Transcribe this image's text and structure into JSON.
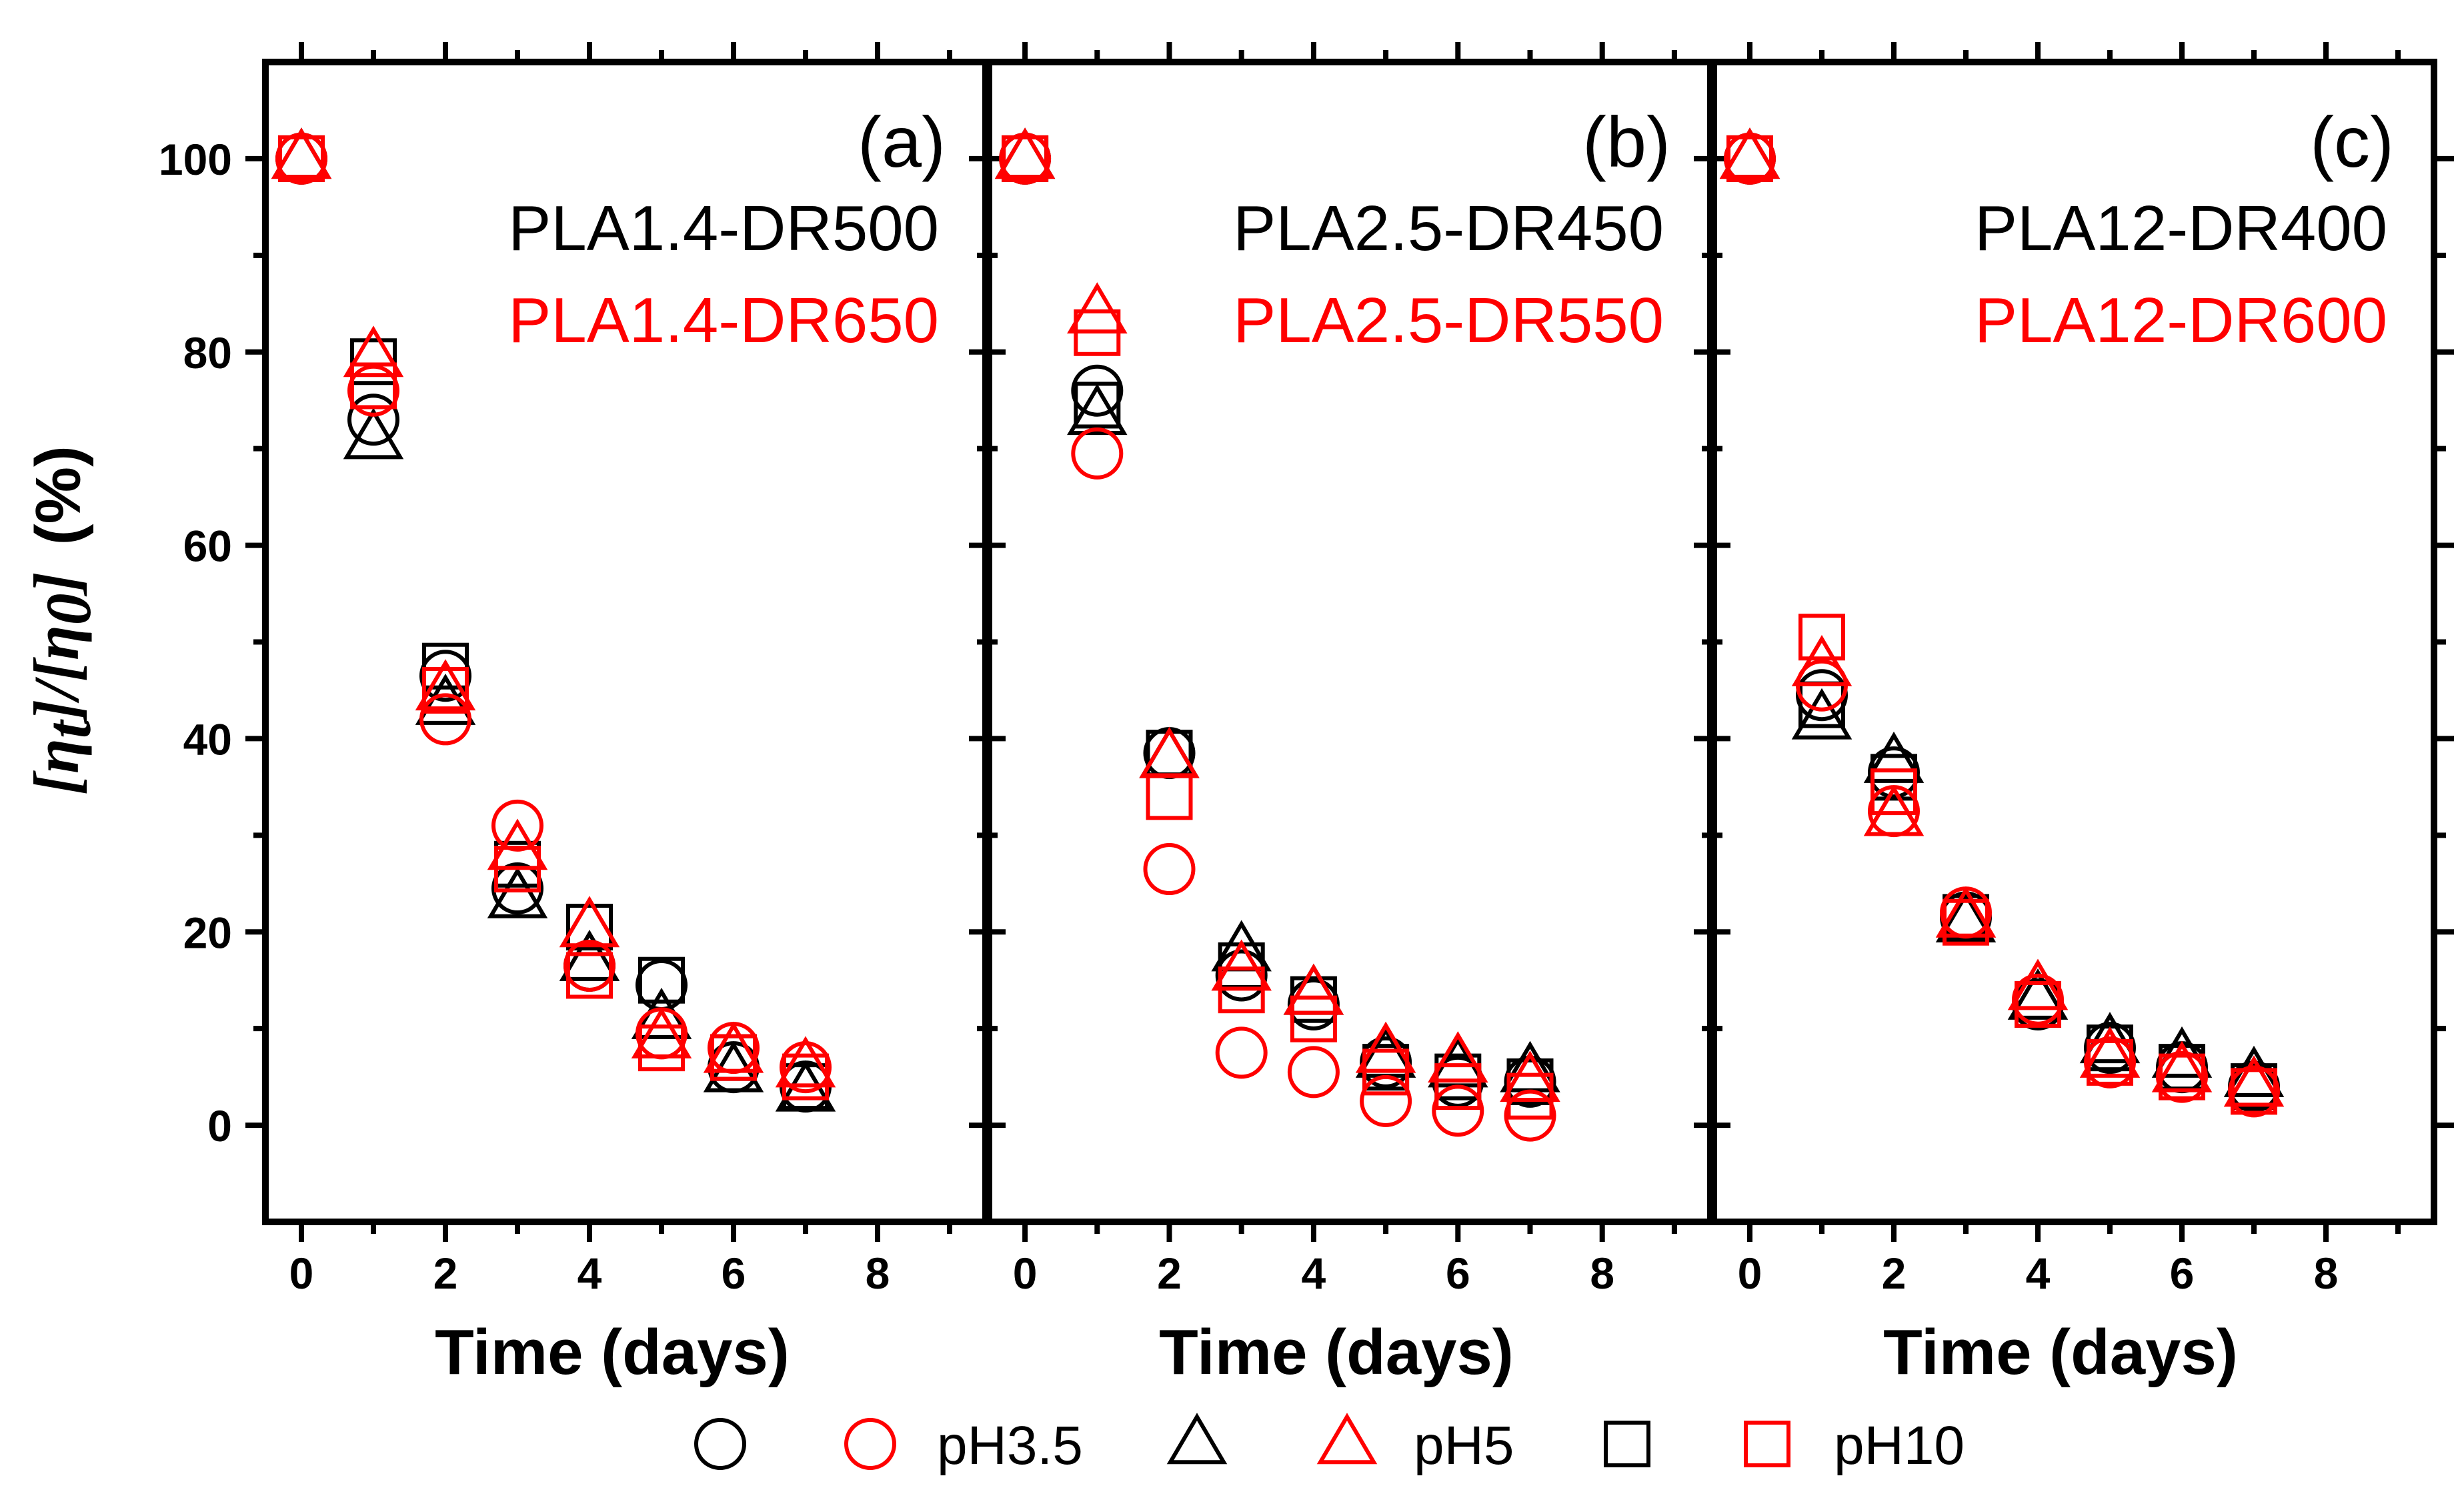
{
  "chart_data": [
    {
      "type": "scatter",
      "panel": "(a)",
      "xlabel": "Time (days)",
      "ylabel": "[ηt]/[η0] (%)",
      "xlim": [
        -0.5,
        9.5
      ],
      "ylim": [
        -10,
        110
      ],
      "xticks": [
        0,
        2,
        4,
        6,
        8
      ],
      "yticks": [
        0,
        20,
        40,
        60,
        80,
        100
      ],
      "samples": [
        {
          "name": "PLA1.4-DR500",
          "color": "#000000"
        },
        {
          "name": "PLA1.4-DR650",
          "color": "#ff0000"
        }
      ],
      "series": [
        {
          "sample": "PLA1.4-DR500",
          "ph": "pH3.5",
          "marker": "circle",
          "color": "#000000",
          "x": [
            0,
            1,
            2,
            3,
            4,
            5,
            6,
            7
          ],
          "y": [
            100,
            73,
            46.5,
            24.5,
            16.5,
            14.5,
            6,
            4
          ]
        },
        {
          "sample": "PLA1.4-DR500",
          "ph": "pH5",
          "marker": "triangle",
          "color": "#000000",
          "x": [
            0,
            1,
            2,
            3,
            4,
            5,
            6,
            7
          ],
          "y": [
            100,
            71,
            43.5,
            23.5,
            17,
            11,
            5.5,
            3.5
          ]
        },
        {
          "sample": "PLA1.4-DR500",
          "ph": "pH10",
          "marker": "square",
          "color": "#000000",
          "x": [
            0,
            1,
            2,
            3,
            4,
            5,
            6,
            7
          ],
          "y": [
            100,
            79,
            47.5,
            27,
            20.5,
            15,
            7,
            4
          ]
        },
        {
          "sample": "PLA1.4-DR650",
          "ph": "pH3.5",
          "marker": "circle",
          "color": "#ff0000",
          "x": [
            0,
            1,
            2,
            3,
            4,
            5,
            6,
            7
          ],
          "y": [
            100,
            76,
            42,
            31,
            16.5,
            9.5,
            8,
            6
          ]
        },
        {
          "sample": "PLA1.4-DR650",
          "ph": "pH5",
          "marker": "triangle",
          "color": "#ff0000",
          "x": [
            0,
            1,
            2,
            3,
            4,
            5,
            6,
            7
          ],
          "y": [
            100,
            79.5,
            45,
            28.5,
            20.5,
            9,
            7.5,
            6
          ]
        },
        {
          "sample": "PLA1.4-DR650",
          "ph": "pH10",
          "marker": "square",
          "color": "#ff0000",
          "x": [
            0,
            1,
            2,
            3,
            4,
            5,
            6,
            7
          ],
          "y": [
            100,
            76.5,
            45,
            26.5,
            15.5,
            8,
            7,
            5
          ]
        }
      ]
    },
    {
      "type": "scatter",
      "panel": "(b)",
      "xlabel": "Time (days)",
      "xlim": [
        -0.5,
        9.5
      ],
      "ylim": [
        -10,
        110
      ],
      "xticks": [
        0,
        2,
        4,
        6,
        8
      ],
      "yticks": [
        0,
        20,
        40,
        60,
        80,
        100
      ],
      "samples": [
        {
          "name": "PLA2.5-DR450",
          "color": "#000000"
        },
        {
          "name": "PLA2.5-DR550",
          "color": "#ff0000"
        }
      ],
      "series": [
        {
          "sample": "PLA2.5-DR450",
          "ph": "pH3.5",
          "marker": "circle",
          "color": "#000000",
          "x": [
            0,
            1,
            2,
            3,
            4,
            5,
            6,
            7
          ],
          "y": [
            100,
            76,
            38.5,
            15.5,
            12.5,
            6.5,
            4.5,
            4.5
          ]
        },
        {
          "sample": "PLA2.5-DR450",
          "ph": "pH5",
          "marker": "triangle",
          "color": "#000000",
          "x": [
            0,
            1,
            2,
            3,
            4,
            5,
            6,
            7
          ],
          "y": [
            100,
            73.5,
            38,
            18,
            13.5,
            7,
            6,
            5.5
          ]
        },
        {
          "sample": "PLA2.5-DR450",
          "ph": "pH10",
          "marker": "square",
          "color": "#000000",
          "x": [
            0,
            1,
            2,
            3,
            4,
            5,
            6,
            7
          ],
          "y": [
            100,
            74.5,
            38.5,
            16.5,
            13,
            6,
            5,
            4.5
          ]
        },
        {
          "sample": "PLA2.5-DR550",
          "ph": "pH3.5",
          "marker": "circle",
          "color": "#ff0000",
          "x": [
            0,
            1,
            2,
            3,
            4,
            5,
            6,
            7
          ],
          "y": [
            100,
            69.5,
            26.5,
            7.5,
            5.5,
            2.5,
            1.5,
            1
          ]
        },
        {
          "sample": "PLA2.5-DR550",
          "ph": "pH5",
          "marker": "triangle",
          "color": "#ff0000",
          "x": [
            0,
            1,
            2,
            3,
            4,
            5,
            6,
            7
          ],
          "y": [
            100,
            84,
            38,
            16,
            13.5,
            7.5,
            6.5,
            4.5
          ]
        },
        {
          "sample": "PLA2.5-DR550",
          "ph": "pH10",
          "marker": "square",
          "color": "#ff0000",
          "x": [
            0,
            1,
            2,
            3,
            4,
            5,
            6,
            7
          ],
          "y": [
            100,
            82,
            34,
            14,
            11,
            5.5,
            4,
            3
          ]
        }
      ]
    },
    {
      "type": "scatter",
      "panel": "(c)",
      "xlabel": "Time (days)",
      "xlim": [
        -0.5,
        9.5
      ],
      "ylim": [
        -10,
        110
      ],
      "xticks": [
        0,
        2,
        4,
        6,
        8
      ],
      "yticks": [
        0,
        20,
        40,
        60,
        80,
        100
      ],
      "samples": [
        {
          "name": "PLA12-DR400",
          "color": "#000000"
        },
        {
          "name": "PLA12-DR600",
          "color": "#ff0000"
        }
      ],
      "series": [
        {
          "sample": "PLA12-DR400",
          "ph": "pH3.5",
          "marker": "circle",
          "color": "#000000",
          "x": [
            0,
            1,
            2,
            3,
            4,
            5,
            6,
            7
          ],
          "y": [
            100,
            44.5,
            36.5,
            21.5,
            12.5,
            8,
            6,
            4
          ]
        },
        {
          "sample": "PLA12-DR400",
          "ph": "pH5",
          "marker": "triangle",
          "color": "#000000",
          "x": [
            0,
            1,
            2,
            3,
            4,
            5,
            6,
            7
          ],
          "y": [
            100,
            42,
            37.5,
            21,
            13,
            8.5,
            7,
            5
          ]
        },
        {
          "sample": "PLA12-DR400",
          "ph": "pH10",
          "marker": "square",
          "color": "#000000",
          "x": [
            0,
            1,
            2,
            3,
            4,
            5,
            6,
            7
          ],
          "y": [
            100,
            43.5,
            36,
            21.5,
            12.5,
            8,
            6,
            4
          ]
        },
        {
          "sample": "PLA12-DR600",
          "ph": "pH3.5",
          "marker": "circle",
          "color": "#ff0000",
          "x": [
            0,
            1,
            2,
            3,
            4,
            5,
            6,
            7
          ],
          "y": [
            100,
            45.5,
            32.5,
            22,
            13,
            6.5,
            5,
            3.5
          ]
        },
        {
          "sample": "PLA12-DR600",
          "ph": "pH5",
          "marker": "triangle",
          "color": "#ff0000",
          "x": [
            0,
            1,
            2,
            3,
            4,
            5,
            6,
            7
          ],
          "y": [
            100,
            47.5,
            32,
            21.5,
            14,
            7,
            5.5,
            4
          ]
        },
        {
          "sample": "PLA12-DR600",
          "ph": "pH10",
          "marker": "square",
          "color": "#ff0000",
          "x": [
            0,
            1,
            2,
            3,
            4,
            5,
            6,
            7
          ],
          "y": [
            100,
            50.5,
            34.5,
            21,
            12.5,
            6.5,
            5,
            3.5
          ]
        }
      ]
    }
  ],
  "legend": {
    "placement": "bottom-center",
    "entries": [
      {
        "label": "",
        "marker": "circle",
        "color": "#000000"
      },
      {
        "label": "pH3.5",
        "marker": "circle",
        "color": "#ff0000"
      },
      {
        "label": "",
        "marker": "triangle",
        "color": "#000000"
      },
      {
        "label": "pH5",
        "marker": "triangle",
        "color": "#ff0000"
      },
      {
        "label": "",
        "marker": "square",
        "color": "#000000"
      },
      {
        "label": "pH10",
        "marker": "square",
        "color": "#ff0000"
      }
    ]
  },
  "ylabel_parts": {
    "open": "[",
    "eta": "η",
    "sub_t": "t",
    "mid": "]/[",
    "sub_0": "0",
    "close": "]",
    "unit": "(%)"
  }
}
